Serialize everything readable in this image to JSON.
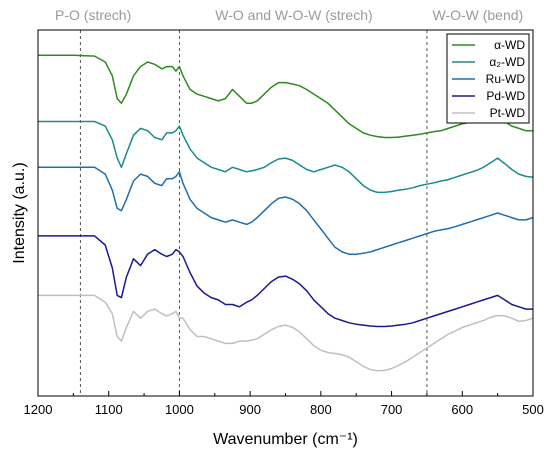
{
  "chart_data": {
    "type": "line",
    "xlabel": "Wavenumber (cm⁻¹)",
    "ylabel": "Intensity (a.u.)",
    "xlim": [
      1200,
      500
    ],
    "x_reversed": true,
    "x_ticks": [
      "1200",
      "1100",
      "1000",
      "900",
      "800",
      "700",
      "600",
      "500"
    ],
    "y_ticks_shown": false,
    "grid": false,
    "legend_position": "top-right",
    "annotations": [
      {
        "text": "P-O (strech)",
        "x": 1140,
        "x_text": 1122
      },
      {
        "text": "W-O and W-O-W (strech)",
        "x": 1000,
        "x_text": 838
      },
      {
        "text": "W-O-W (bend)",
        "x": 650,
        "x_text": 578
      }
    ],
    "reference_lines_x": [
      1140,
      1000,
      650
    ],
    "series": [
      {
        "name": "α-WD",
        "color": "#2e8b1f",
        "x": [
          1200,
          1150,
          1120,
          1105,
          1095,
          1088,
          1082,
          1075,
          1065,
          1055,
          1045,
          1035,
          1025,
          1018,
          1010,
          1005,
          1000,
          995,
          985,
          975,
          965,
          955,
          945,
          935,
          925,
          915,
          905,
          898,
          890,
          880,
          870,
          860,
          850,
          840,
          830,
          820,
          810,
          800,
          790,
          780,
          770,
          760,
          750,
          740,
          730,
          720,
          710,
          700,
          690,
          680,
          670,
          660,
          650,
          640,
          630,
          620,
          610,
          600,
          590,
          580,
          570,
          560,
          550,
          540,
          530,
          520,
          510,
          500
        ],
        "values": [
          94.5,
          94.5,
          94.3,
          93,
          90,
          85,
          84,
          86,
          90,
          92,
          93,
          92.5,
          91.5,
          92,
          92,
          91,
          92,
          90,
          87,
          86,
          85.5,
          85,
          84.5,
          85,
          87,
          85.5,
          84,
          84,
          84.5,
          86,
          87.5,
          88.5,
          88.5,
          88.2,
          87.8,
          87,
          86,
          85,
          84,
          82.5,
          81,
          79.5,
          78.5,
          77.5,
          77,
          76.7,
          76.5,
          76.5,
          76.6,
          76.8,
          77,
          77.2,
          77.5,
          77.8,
          78,
          78.5,
          79,
          79.5,
          79.8,
          80,
          80.5,
          81,
          81,
          80,
          79,
          78.5,
          78,
          78
        ]
      },
      {
        "name": "α₂-WD",
        "color": "#1a8c8c",
        "x": [
          1200,
          1150,
          1120,
          1105,
          1095,
          1088,
          1082,
          1075,
          1065,
          1055,
          1045,
          1035,
          1025,
          1018,
          1010,
          1005,
          1000,
          995,
          985,
          975,
          965,
          955,
          945,
          935,
          925,
          915,
          905,
          898,
          890,
          880,
          870,
          860,
          850,
          840,
          830,
          820,
          810,
          800,
          790,
          780,
          770,
          760,
          750,
          740,
          730,
          720,
          710,
          700,
          690,
          680,
          670,
          660,
          650,
          640,
          630,
          620,
          610,
          600,
          590,
          580,
          570,
          560,
          550,
          540,
          530,
          520,
          510,
          500
        ],
        "values": [
          80,
          80,
          80,
          79,
          76,
          72,
          70,
          73,
          77,
          78.5,
          78,
          76.5,
          76,
          77.5,
          77.5,
          78,
          79,
          77,
          74,
          72,
          71,
          70,
          69.5,
          69,
          70,
          69.5,
          69,
          69.2,
          69.5,
          70,
          71,
          71.8,
          72,
          71.5,
          70.5,
          69.5,
          69,
          69.5,
          70,
          70.5,
          70,
          69,
          67.5,
          66,
          65,
          64.5,
          64.5,
          64.7,
          65,
          65.2,
          65.5,
          66,
          66.3,
          66.6,
          67,
          67.3,
          67.8,
          68.3,
          68.8,
          69.3,
          70,
          71,
          72,
          70.8,
          69.5,
          68.5,
          68,
          67.8
        ]
      },
      {
        "name": "Ru-WD",
        "color": "#1f6fae",
        "x": [
          1200,
          1150,
          1120,
          1105,
          1095,
          1088,
          1082,
          1075,
          1065,
          1055,
          1045,
          1035,
          1025,
          1018,
          1010,
          1005,
          1000,
          995,
          985,
          975,
          965,
          955,
          945,
          935,
          925,
          915,
          905,
          898,
          890,
          880,
          870,
          860,
          850,
          840,
          830,
          820,
          810,
          800,
          790,
          780,
          770,
          760,
          750,
          740,
          730,
          720,
          710,
          700,
          690,
          680,
          670,
          660,
          650,
          640,
          630,
          620,
          610,
          600,
          590,
          580,
          570,
          560,
          550,
          540,
          530,
          520,
          510,
          500
        ],
        "values": [
          70,
          70,
          70,
          68.5,
          65,
          61,
          60.5,
          63,
          67,
          68.5,
          68,
          66.5,
          66,
          67.5,
          67.5,
          68,
          69,
          66.5,
          63,
          61,
          60,
          59,
          58.5,
          58,
          58.5,
          58,
          57.5,
          58,
          59,
          60.5,
          62,
          63.2,
          63.5,
          63,
          62,
          60.5,
          58.5,
          56.5,
          54.5,
          52.5,
          51.5,
          51,
          51,
          51.2,
          51.5,
          52,
          52.5,
          53,
          53.5,
          54,
          54.5,
          55,
          55.5,
          56,
          56.3,
          56.6,
          57,
          57.5,
          58,
          58.5,
          59,
          59.5,
          60,
          59.5,
          59,
          58.5,
          58.5,
          59
        ]
      },
      {
        "name": "Pd-WD",
        "color": "#1a1a8c",
        "x": [
          1200,
          1150,
          1120,
          1105,
          1095,
          1088,
          1082,
          1075,
          1065,
          1055,
          1045,
          1035,
          1025,
          1018,
          1010,
          1005,
          1000,
          995,
          985,
          975,
          965,
          955,
          945,
          935,
          925,
          915,
          905,
          898,
          890,
          880,
          870,
          860,
          850,
          840,
          830,
          820,
          810,
          800,
          790,
          780,
          770,
          760,
          750,
          740,
          730,
          720,
          710,
          700,
          690,
          680,
          670,
          660,
          650,
          640,
          630,
          620,
          610,
          600,
          590,
          580,
          570,
          560,
          550,
          540,
          530,
          520,
          510,
          500
        ],
        "values": [
          55,
          55,
          55,
          53,
          48,
          42,
          41.5,
          46,
          50,
          48.5,
          51,
          52,
          51,
          50.5,
          51,
          52,
          51.5,
          50.5,
          47,
          44,
          42.5,
          41.5,
          41,
          40,
          40,
          39.5,
          40.5,
          41,
          42,
          43.5,
          45,
          46,
          46.2,
          45.5,
          44.5,
          43,
          41,
          39.5,
          38,
          37,
          36.5,
          36,
          35.7,
          35.5,
          35.3,
          35.2,
          35.2,
          35.3,
          35.5,
          35.7,
          36,
          36.5,
          37,
          37.5,
          38,
          38.5,
          39,
          39.5,
          40,
          40.5,
          41,
          41.5,
          42,
          41,
          40,
          39.5,
          39,
          39
        ]
      },
      {
        "name": "Pt-WD",
        "color": "#c0c0c0",
        "x": [
          1200,
          1150,
          1120,
          1105,
          1095,
          1088,
          1082,
          1075,
          1065,
          1055,
          1045,
          1035,
          1025,
          1018,
          1010,
          1005,
          1000,
          995,
          985,
          975,
          965,
          955,
          945,
          935,
          925,
          915,
          905,
          898,
          890,
          880,
          870,
          860,
          850,
          840,
          830,
          820,
          810,
          800,
          790,
          780,
          770,
          760,
          750,
          740,
          730,
          720,
          710,
          700,
          690,
          680,
          670,
          660,
          650,
          640,
          630,
          620,
          610,
          600,
          590,
          580,
          570,
          560,
          550,
          540,
          530,
          520,
          510,
          500
        ],
        "values": [
          42,
          42,
          42,
          40.5,
          38,
          33,
          32,
          35,
          38.5,
          37,
          38.5,
          39,
          38,
          37.5,
          38,
          38.5,
          37,
          37,
          34.5,
          33,
          33,
          32.5,
          32,
          31.5,
          31.5,
          32,
          32,
          32.2,
          32.5,
          33.5,
          34.5,
          35.2,
          35.5,
          35,
          34,
          32.5,
          31,
          30,
          29.5,
          29.3,
          29,
          28.5,
          27.5,
          26.5,
          25.8,
          25.5,
          25.6,
          26,
          26.7,
          27.5,
          28.5,
          29.5,
          30.5,
          31.5,
          32.5,
          33.5,
          34.2,
          35,
          35.5,
          36,
          36.5,
          37.2,
          37.6,
          37.5,
          37,
          36.3,
          36.5,
          37
        ]
      }
    ]
  }
}
